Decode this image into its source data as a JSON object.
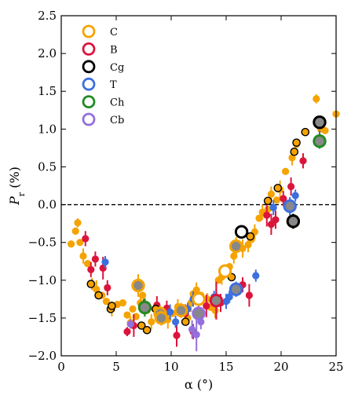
{
  "chart_data": {
    "type": "scatter",
    "xlabel": "α (°)",
    "ylabel_main": "P",
    "ylabel_sub": "r",
    "ylabel_unit": "(%)",
    "xlim": [
      0,
      25
    ],
    "ylim": [
      -2.0,
      2.5
    ],
    "x_ticks": [
      0,
      5,
      10,
      15,
      20,
      25
    ],
    "y_ticks": [
      -2.0,
      -1.5,
      -1.0,
      -0.5,
      0.0,
      0.5,
      1.0,
      1.5,
      2.0,
      2.5
    ],
    "x_tick_labels": [
      "0",
      "5",
      "10",
      "15",
      "20",
      "25"
    ],
    "y_tick_labels": [
      "−2.0",
      "−1.5",
      "−1.0",
      "−0.5",
      "0.0",
      "0.5",
      "1.0",
      "1.5",
      "2.0",
      "2.5"
    ],
    "reference_line": {
      "y": 0.0,
      "style": "dashed",
      "color": "#000000"
    },
    "legend": {
      "placement": "upper-left",
      "entries": [
        {
          "label": "C",
          "color": "#f5a300"
        },
        {
          "label": "B",
          "color": "#dc143c"
        },
        {
          "label": "Cg",
          "color": "#000000"
        },
        {
          "label": "T",
          "color": "#3c6fe0"
        },
        {
          "label": "Ch",
          "color": "#228b22"
        },
        {
          "label": "Cb",
          "color": "#9370db"
        }
      ]
    },
    "series": [
      {
        "name": "C",
        "color": "#f5a300",
        "points": [
          [
            0.9,
            -0.52,
            0
          ],
          [
            1.3,
            -0.35,
            0.05
          ],
          [
            1.5,
            -0.24,
            0.06
          ],
          [
            1.7,
            -0.5,
            0
          ],
          [
            2.0,
            -0.68,
            0.1
          ],
          [
            2.4,
            -0.78,
            0
          ],
          [
            2.8,
            -1.05,
            0.08
          ],
          [
            3.2,
            -1.12,
            0.12
          ],
          [
            3.7,
            -1.2,
            0
          ],
          [
            4.1,
            -1.28,
            0
          ],
          [
            4.6,
            -1.38,
            0.1
          ],
          [
            5.1,
            -1.32,
            0
          ],
          [
            5.6,
            -1.3,
            0
          ],
          [
            6.0,
            -1.46,
            0
          ],
          [
            6.3,
            -1.56,
            0.08
          ],
          [
            6.5,
            -1.38,
            0
          ],
          [
            6.8,
            -1.48,
            0
          ],
          [
            7.2,
            -1.3,
            0.1
          ],
          [
            7.4,
            -1.2,
            0
          ],
          [
            7.8,
            -1.4,
            0
          ],
          [
            8.2,
            -1.55,
            0.1
          ],
          [
            8.5,
            -1.38,
            0
          ],
          [
            9.3,
            -1.48,
            0
          ],
          [
            9.7,
            -1.52,
            0.12
          ],
          [
            10.1,
            -1.44,
            0
          ],
          [
            10.6,
            -1.35,
            0.1
          ],
          [
            11.5,
            -1.5,
            0
          ],
          [
            11.8,
            -1.3,
            0.12
          ],
          [
            12.0,
            -1.18,
            0
          ],
          [
            12.3,
            -1.13,
            0.1
          ],
          [
            12.7,
            -1.2,
            0
          ],
          [
            13.3,
            -1.25,
            0.08
          ],
          [
            13.6,
            -1.36,
            0
          ],
          [
            14.0,
            -1.4,
            0.1
          ],
          [
            14.3,
            -1.0,
            0
          ],
          [
            14.6,
            -0.96,
            0.1
          ],
          [
            15.0,
            -0.88,
            0
          ],
          [
            15.3,
            -0.82,
            0
          ],
          [
            15.7,
            -0.68,
            0.1
          ],
          [
            16.1,
            -0.54,
            0
          ],
          [
            16.5,
            -0.58,
            0.12
          ],
          [
            17.0,
            -0.53,
            0.1
          ],
          [
            17.3,
            -0.46,
            0
          ],
          [
            17.6,
            -0.36,
            0.1
          ],
          [
            18.0,
            -0.18,
            0
          ],
          [
            18.3,
            -0.1,
            0.1
          ],
          [
            18.8,
            -0.06,
            0
          ],
          [
            19.1,
            0.14,
            0.1
          ],
          [
            19.6,
            0.06,
            0
          ],
          [
            19.9,
            0.2,
            0.12
          ],
          [
            20.4,
            0.44,
            0
          ],
          [
            21.0,
            0.62,
            0.1
          ],
          [
            21.4,
            0.8,
            0
          ],
          [
            23.2,
            1.4,
            0.06
          ],
          [
            23.6,
            1.0,
            0
          ],
          [
            24.0,
            0.98,
            0
          ],
          [
            25.0,
            1.2,
            0
          ]
        ]
      },
      {
        "name": "B",
        "color": "#dc143c",
        "points": [
          [
            2.2,
            -0.45,
            0.1
          ],
          [
            2.7,
            -0.86,
            0.1
          ],
          [
            3.1,
            -0.72,
            0.1
          ],
          [
            3.8,
            -0.84,
            0.15
          ],
          [
            4.2,
            -1.1,
            0.1
          ],
          [
            6.0,
            -1.68,
            0.06
          ],
          [
            6.6,
            -1.6,
            0.15
          ],
          [
            7.5,
            -1.35,
            0.1
          ],
          [
            8.7,
            -1.33,
            0.12
          ],
          [
            9.6,
            -1.37,
            0.1
          ],
          [
            10.5,
            -1.73,
            0.15
          ],
          [
            11.3,
            -1.44,
            0.12
          ],
          [
            12.0,
            -1.68,
            0.1
          ],
          [
            13.2,
            -1.34,
            0.15
          ],
          [
            14.5,
            -1.3,
            0.12
          ],
          [
            16.5,
            -1.06,
            0.1
          ],
          [
            17.1,
            -1.2,
            0.15
          ],
          [
            18.7,
            -0.14,
            0.15
          ],
          [
            19.1,
            -0.26,
            0.14
          ],
          [
            19.5,
            -0.2,
            0.12
          ],
          [
            20.2,
            0.08,
            0.1
          ],
          [
            20.9,
            0.24,
            0.12
          ],
          [
            22.0,
            0.58,
            0.1
          ]
        ]
      },
      {
        "name": "T",
        "color": "#3c6fe0",
        "points": [
          [
            4.0,
            -0.76,
            0.08
          ],
          [
            9.9,
            -1.42,
            0.1
          ],
          [
            10.4,
            -1.55,
            0.08
          ],
          [
            11.5,
            -1.38,
            0.08
          ],
          [
            12.0,
            -1.25,
            0.1
          ],
          [
            13.9,
            -1.22,
            0.08
          ],
          [
            15.0,
            -1.28,
            0.1
          ],
          [
            15.3,
            -1.22,
            0.08
          ],
          [
            17.7,
            -0.94,
            0.08
          ],
          [
            19.3,
            -0.04,
            0.1
          ],
          [
            21.3,
            0.12,
            0.08
          ],
          [
            23.5,
            0.88,
            0.1
          ]
        ]
      },
      {
        "name": "Cb",
        "color": "#9370db",
        "points": [
          [
            6.3,
            -1.58,
            0.06
          ],
          [
            11.9,
            -1.65,
            0.12
          ],
          [
            12.3,
            -1.72,
            0.22
          ],
          [
            12.7,
            -1.55,
            0.1
          ]
        ]
      },
      {
        "name": "Cg",
        "color": "#f5a300",
        "edge": "#000000",
        "points": [
          [
            2.7,
            -1.05
          ],
          [
            3.4,
            -1.2
          ],
          [
            4.5,
            -1.38
          ],
          [
            4.6,
            -1.34
          ],
          [
            7.3,
            -1.6
          ],
          [
            7.8,
            -1.66
          ],
          [
            8.6,
            -1.38
          ],
          [
            11.3,
            -1.55
          ],
          [
            15.5,
            -0.96
          ],
          [
            17.2,
            -0.42
          ],
          [
            18.8,
            0.05
          ],
          [
            19.7,
            0.22
          ],
          [
            21.2,
            0.7
          ],
          [
            21.4,
            0.82
          ],
          [
            22.2,
            0.96
          ],
          [
            23.3,
            0.82
          ]
        ]
      }
    ],
    "highlighted_points": [
      {
        "series": "C",
        "x": 7.0,
        "y": -1.07,
        "fill": "#f5a300",
        "edge": "#f5a300",
        "err": 0.15
      },
      {
        "series": "C",
        "x": 9.0,
        "y": -1.44,
        "fill": "#f5a300",
        "edge": "#f5a300",
        "err": 0.1
      },
      {
        "series": "C",
        "x": 9.1,
        "y": -1.5,
        "fill": "#f5a300",
        "edge": "#f5a300",
        "err": 0.1
      },
      {
        "series": "C",
        "x": 10.9,
        "y": -1.4,
        "fill": "#f5a300",
        "edge": "#f5a300",
        "err": 0.1
      },
      {
        "series": "C",
        "x": 14.9,
        "y": -0.88,
        "fill": "none",
        "edge": "#f5a300",
        "err": 0
      },
      {
        "series": "C",
        "x": 15.9,
        "y": -0.55,
        "fill": "#f5a300",
        "edge": "#f5a300",
        "err": 0.12
      },
      {
        "series": "C",
        "x": 12.5,
        "y": -1.25,
        "fill": "none",
        "edge": "#f5a300",
        "err": 0
      },
      {
        "series": "C",
        "x": 21.1,
        "y": -0.22,
        "fill": "none",
        "edge": "#f5a300",
        "err": 0
      },
      {
        "series": "B",
        "x": 14.1,
        "y": -1.27,
        "fill": "#dc143c",
        "edge": "#dc143c",
        "err": 0.25
      },
      {
        "series": "Cg",
        "x": 16.4,
        "y": -0.36,
        "fill": "none",
        "edge": "#000000",
        "err": 0
      },
      {
        "series": "Cg",
        "x": 21.1,
        "y": -0.22,
        "fill": "#000000",
        "edge": "#000000",
        "err": 0.1
      },
      {
        "series": "Cg",
        "x": 23.5,
        "y": 1.09,
        "fill": "#000000",
        "edge": "#000000",
        "err": 0.05
      },
      {
        "series": "T",
        "x": 15.9,
        "y": -1.12,
        "fill": "#3c6fe0",
        "edge": "#3c6fe0",
        "err": 0.1
      },
      {
        "series": "T",
        "x": 20.8,
        "y": -0.02,
        "fill": "#3c6fe0",
        "edge": "#3c6fe0",
        "err": 0.12
      },
      {
        "series": "Ch",
        "x": 7.6,
        "y": -1.36,
        "fill": "#228b22",
        "edge": "#228b22",
        "err": 0.12
      },
      {
        "series": "Ch",
        "x": 23.5,
        "y": 0.84,
        "fill": "#228b22",
        "edge": "#228b22",
        "err": 0.1
      },
      {
        "series": "Cb",
        "x": 12.5,
        "y": -1.44,
        "fill": "#9370db",
        "edge": "#9370db",
        "err": 0.1
      }
    ]
  }
}
